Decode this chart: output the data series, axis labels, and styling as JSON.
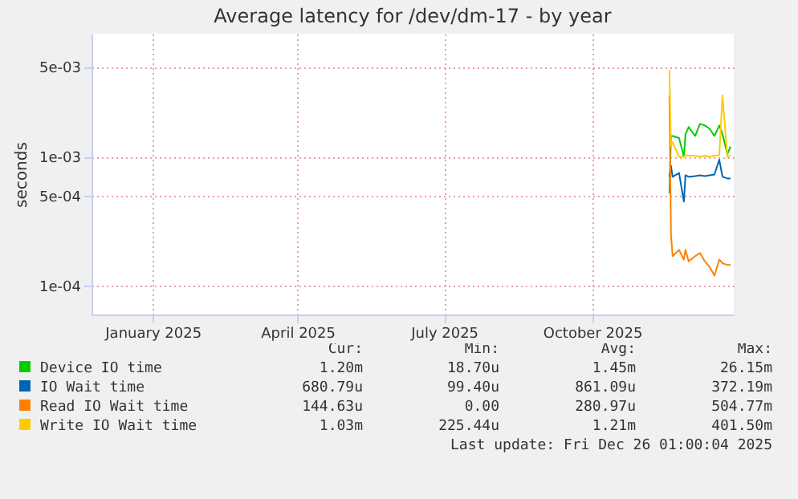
{
  "chart_data": {
    "type": "line",
    "title": "Average latency for /dev/dm-17 - by year",
    "ylabel": "seconds",
    "x": [
      "2025-11-18",
      "2025-11-19",
      "2025-11-20",
      "2025-11-24",
      "2025-11-27",
      "2025-11-28",
      "2025-11-30",
      "2025-12-04",
      "2025-12-07",
      "2025-12-10",
      "2025-12-13",
      "2025-12-16",
      "2025-12-19",
      "2025-12-21",
      "2025-12-24",
      "2025-12-26"
    ],
    "series": [
      {
        "name": "Device IO time",
        "color": "#00cc00",
        "values": [
          0.00052,
          0.00145,
          0.00145,
          0.0014,
          0.001,
          0.0015,
          0.0017,
          0.00145,
          0.0018,
          0.00175,
          0.00165,
          0.00145,
          0.00175,
          0.0015,
          0.00105,
          0.0012
        ]
      },
      {
        "name": "IO Wait time",
        "color": "#0066b3",
        "values": [
          0.0007,
          0.00085,
          0.0007,
          0.00075,
          0.00045,
          0.00072,
          0.0007,
          0.00071,
          0.00072,
          0.00071,
          0.00072,
          0.00073,
          0.00095,
          0.0007,
          0.00068,
          0.00068
        ]
      },
      {
        "name": "Read IO Wait time",
        "color": "#ff8000",
        "values": [
          0.003,
          0.00025,
          0.00017,
          0.00019,
          0.00016,
          0.00019,
          0.000155,
          0.00017,
          0.00018,
          0.000155,
          0.00014,
          0.00012,
          0.00016,
          0.00015,
          0.000145,
          0.000145
        ]
      },
      {
        "name": "Write IO Wait time",
        "color": "#ffcc00",
        "values": [
          0.0047,
          0.0012,
          0.0013,
          0.001,
          0.001,
          0.00103,
          0.00102,
          0.00102,
          0.001,
          0.00102,
          0.001,
          0.00102,
          0.00103,
          0.003,
          0.001,
          0.00103
        ]
      }
    ],
    "xlim": [
      "2024-11-24",
      "2025-12-28"
    ],
    "xticks": [
      {
        "value": "2025-01-01",
        "label": "January 2025"
      },
      {
        "value": "2025-04-01",
        "label": "April 2025"
      },
      {
        "value": "2025-07-01",
        "label": "July 2025"
      },
      {
        "value": "2025-10-01",
        "label": "October 2025"
      }
    ],
    "ylim": [
      6e-05,
      0.009
    ],
    "yticks": [
      {
        "value": 0.0001,
        "label": "1e-04"
      },
      {
        "value": 0.0005,
        "label": "5e-04"
      },
      {
        "value": 0.001,
        "label": "1e-03"
      },
      {
        "value": 0.005,
        "label": "5e-03"
      }
    ],
    "log": true,
    "grid": true,
    "legend": "bottom",
    "line_style": "solid",
    "annotations": [
      "Cur:",
      "Min:",
      "Avg:",
      "Max:",
      "1.20m",
      "18.70u",
      "1.45m",
      "26.15m",
      "680.79u",
      "99.40u",
      "861.09u",
      "372.19m",
      "144.63u",
      "0.00",
      "280.97u",
      "504.77m",
      "1.03m",
      "225.44u",
      "1.21m",
      "401.50m",
      "Last update: Fri Dec 26 01:00:04 2025"
    ]
  }
}
